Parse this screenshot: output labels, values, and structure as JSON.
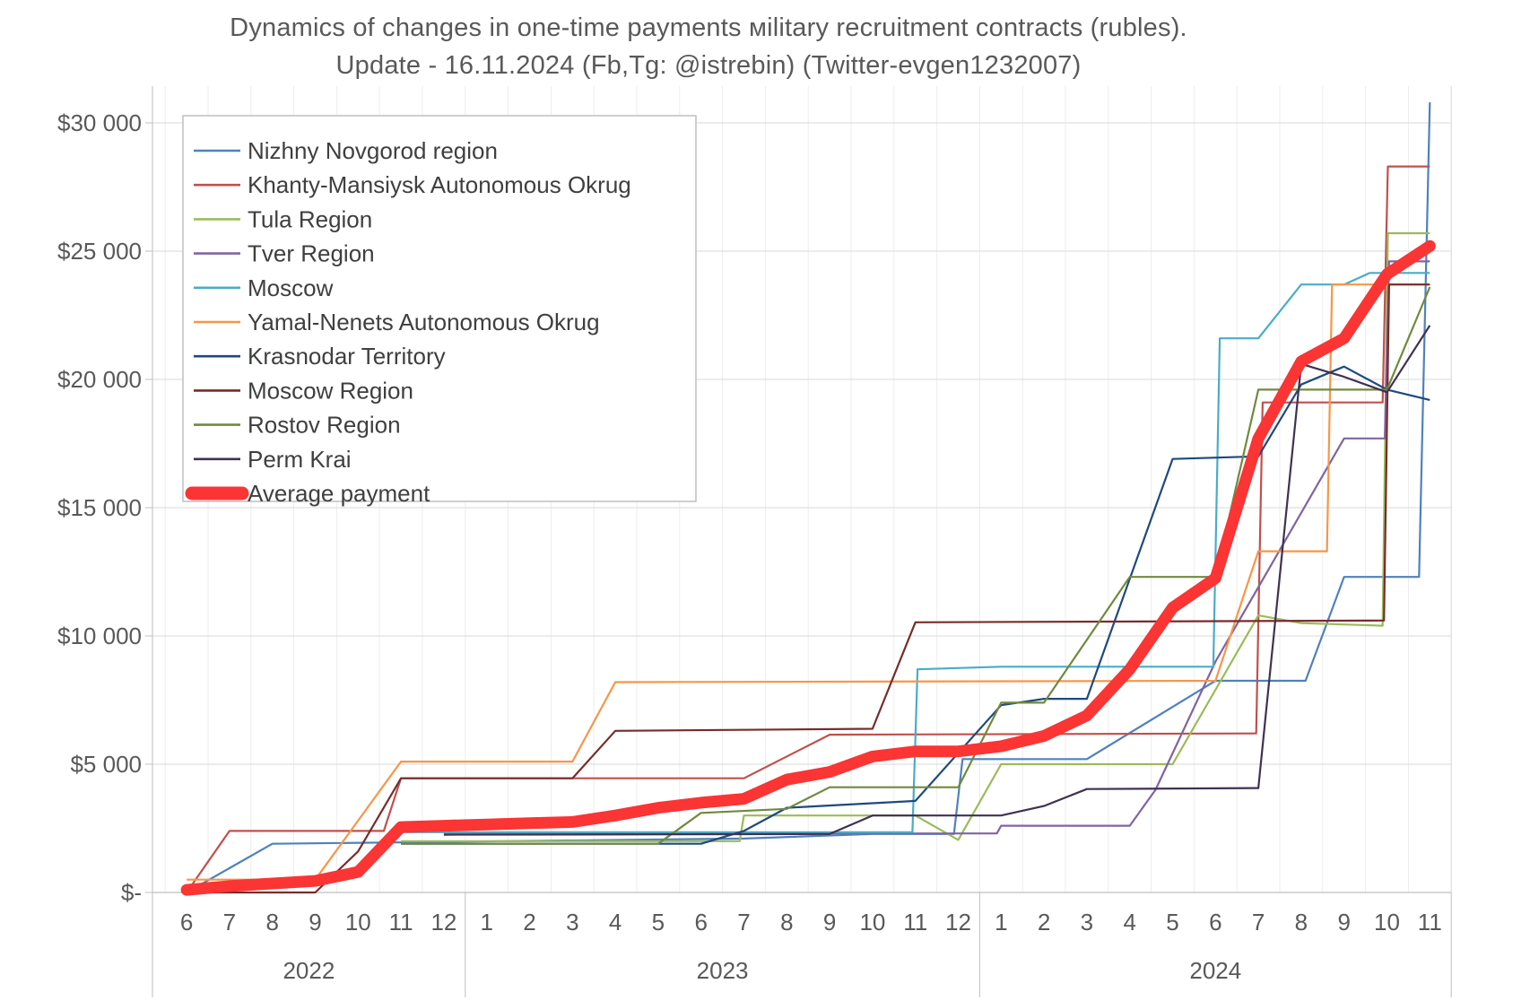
{
  "chart_data": {
    "type": "line",
    "title": "Dynamics of changes in one-time payments мilitary recruitment contracts (rubles).",
    "subtitle": "Update - 16.11.2024 (Fb,Tg: @istrebin) (Twitter-evgen1232007)",
    "grid": "on",
    "legend_position": "top-left-inside",
    "colors": {
      "axis_text": "#595959",
      "legend_text": "#3F3F3F",
      "grid_major": "#D9D9D9",
      "grid_minor": "#EDEDED",
      "axis_line": "#BFBFBF",
      "background": "#FFFFFF"
    },
    "y_axis": {
      "min": 0,
      "max": 31500,
      "ticks": [
        {
          "label": "$-",
          "value": 0
        },
        {
          "label": "$5 000",
          "value": 5000
        },
        {
          "label": "$10 000",
          "value": 10000
        },
        {
          "label": "$15 000",
          "value": 15000
        },
        {
          "label": "$20 000",
          "value": 20000
        },
        {
          "label": "$25 000",
          "value": 25000
        },
        {
          "label": "$30 000",
          "value": 30000
        }
      ]
    },
    "x_axis": {
      "note": "x units are month indices, 0 = 2022-06 ... 29 = 2024-11",
      "years": [
        {
          "year": "2022",
          "months": [
            "6",
            "7",
            "8",
            "9",
            "10",
            "11",
            "12"
          ]
        },
        {
          "year": "2023",
          "months": [
            "1",
            "2",
            "3",
            "4",
            "5",
            "6",
            "7",
            "8",
            "9",
            "10",
            "11",
            "12"
          ]
        },
        {
          "year": "2024",
          "months": [
            "1",
            "2",
            "3",
            "4",
            "5",
            "6",
            "7",
            "8",
            "9",
            "10",
            "11"
          ]
        }
      ]
    },
    "series": [
      {
        "name": "Nizhny Novgorod region",
        "color": "#4F81BD",
        "width": 2.2,
        "points": [
          [
            0,
            0
          ],
          [
            2,
            1900
          ],
          [
            13,
            2100
          ],
          [
            16,
            2280
          ],
          [
            17.9,
            2280
          ],
          [
            18.1,
            5200
          ],
          [
            21,
            5200
          ],
          [
            24,
            8250
          ],
          [
            26.1,
            8250
          ],
          [
            27,
            12300
          ],
          [
            28.75,
            12300
          ],
          [
            29,
            30800
          ]
        ]
      },
      {
        "name": "Khanty-Mansiysk Autonomous Okrug",
        "color": "#C0504D",
        "width": 2.2,
        "points": [
          [
            0,
            0
          ],
          [
            1,
            2400
          ],
          [
            4.6,
            2400
          ],
          [
            5,
            4450
          ],
          [
            13,
            4450
          ],
          [
            15,
            6150
          ],
          [
            24.95,
            6200
          ],
          [
            25.1,
            19100
          ],
          [
            27.9,
            19100
          ],
          [
            28.02,
            28300
          ],
          [
            29,
            28300
          ]
        ]
      },
      {
        "name": "Tula Region",
        "color": "#9BBB59",
        "width": 2.2,
        "points": [
          [
            5,
            2000
          ],
          [
            12.9,
            2000
          ],
          [
            13,
            3000
          ],
          [
            17,
            3000
          ],
          [
            18,
            2050
          ],
          [
            19,
            5000
          ],
          [
            23,
            5000
          ],
          [
            25,
            10800
          ],
          [
            26,
            10500
          ],
          [
            27.9,
            10400
          ],
          [
            28.02,
            25700
          ],
          [
            29,
            25700
          ]
        ]
      },
      {
        "name": "Tver Region",
        "color": "#8064A2",
        "width": 2.2,
        "points": [
          [
            6,
            2300
          ],
          [
            18.9,
            2300
          ],
          [
            19,
            2600
          ],
          [
            22,
            2600
          ],
          [
            22.6,
            4000
          ],
          [
            24,
            9000
          ],
          [
            27,
            17700
          ],
          [
            27.95,
            17700
          ],
          [
            28.05,
            24600
          ],
          [
            29,
            24600
          ]
        ]
      },
      {
        "name": "Moscow",
        "color": "#4BACC6",
        "width": 2.2,
        "points": [
          [
            5,
            2350
          ],
          [
            16.93,
            2350
          ],
          [
            17.05,
            8700
          ],
          [
            19,
            8800
          ],
          [
            23.95,
            8800
          ],
          [
            24.1,
            21600
          ],
          [
            25,
            21600
          ],
          [
            26,
            23700
          ],
          [
            27,
            23700
          ],
          [
            27.6,
            24150
          ],
          [
            29,
            24150
          ]
        ]
      },
      {
        "name": "Yamal-Nenets Autonomous Okrug",
        "color": "#F79646",
        "width": 2.2,
        "points": [
          [
            0,
            500
          ],
          [
            3,
            500
          ],
          [
            4,
            2800
          ],
          [
            5,
            5100
          ],
          [
            9,
            5100
          ],
          [
            10,
            8200
          ],
          [
            24,
            8250
          ],
          [
            25,
            13300
          ],
          [
            26.6,
            13300
          ],
          [
            26.72,
            23700
          ],
          [
            29,
            23700
          ]
        ]
      },
      {
        "name": "Krasnodar Territory",
        "color": "#1F497D",
        "width": 2.2,
        "points": [
          [
            5,
            1900
          ],
          [
            12,
            1900
          ],
          [
            13,
            2400
          ],
          [
            14,
            3300
          ],
          [
            17,
            3570
          ],
          [
            19,
            7300
          ],
          [
            20,
            7550
          ],
          [
            21,
            7550
          ],
          [
            23,
            16900
          ],
          [
            25,
            17000
          ],
          [
            26,
            19800
          ],
          [
            27,
            20500
          ],
          [
            28,
            19600
          ],
          [
            29,
            19200
          ]
        ]
      },
      {
        "name": "Moscow Region",
        "color": "#772C2A",
        "width": 2.2,
        "points": [
          [
            0,
            0
          ],
          [
            3,
            0
          ],
          [
            4,
            1600
          ],
          [
            5,
            4450
          ],
          [
            9,
            4450
          ],
          [
            10,
            6300
          ],
          [
            16,
            6380
          ],
          [
            17,
            10530
          ],
          [
            27.93,
            10600
          ],
          [
            28.05,
            23700
          ],
          [
            29,
            23700
          ]
        ]
      },
      {
        "name": "Rostov Region",
        "color": "#71893F",
        "width": 2.2,
        "points": [
          [
            5,
            1900
          ],
          [
            11,
            1900
          ],
          [
            12,
            3100
          ],
          [
            14,
            3260
          ],
          [
            15,
            4100
          ],
          [
            18,
            4100
          ],
          [
            19,
            7400
          ],
          [
            20,
            7400
          ],
          [
            22,
            12300
          ],
          [
            24,
            12300
          ],
          [
            25,
            19600
          ],
          [
            28,
            19600
          ],
          [
            29,
            23600
          ]
        ]
      },
      {
        "name": "Perm Krai",
        "color": "#403152",
        "width": 2.2,
        "points": [
          [
            6,
            2250
          ],
          [
            15,
            2280
          ],
          [
            16,
            3000
          ],
          [
            19,
            3000
          ],
          [
            20,
            3370
          ],
          [
            21,
            4030
          ],
          [
            25,
            4070
          ],
          [
            26,
            20600
          ],
          [
            27,
            20100
          ],
          [
            28,
            19500
          ],
          [
            29,
            22100
          ]
        ]
      },
      {
        "name": "Average payment",
        "color": "#FB3434",
        "width": 13,
        "thick": true,
        "points": [
          [
            0,
            100
          ],
          [
            1,
            250
          ],
          [
            2,
            350
          ],
          [
            3,
            450
          ],
          [
            4,
            800
          ],
          [
            5,
            2550
          ],
          [
            6,
            2600
          ],
          [
            7,
            2650
          ],
          [
            8,
            2700
          ],
          [
            9,
            2750
          ],
          [
            10,
            3000
          ],
          [
            11,
            3300
          ],
          [
            12,
            3500
          ],
          [
            13,
            3650
          ],
          [
            14,
            4400
          ],
          [
            15,
            4700
          ],
          [
            16,
            5300
          ],
          [
            17,
            5500
          ],
          [
            18,
            5500
          ],
          [
            19,
            5700
          ],
          [
            20,
            6100
          ],
          [
            21,
            6900
          ],
          [
            22,
            8700
          ],
          [
            23,
            11100
          ],
          [
            24,
            12250
          ],
          [
            25,
            17700
          ],
          [
            26,
            20700
          ],
          [
            27,
            21600
          ],
          [
            28,
            24100
          ],
          [
            29,
            25200
          ]
        ]
      }
    ]
  }
}
